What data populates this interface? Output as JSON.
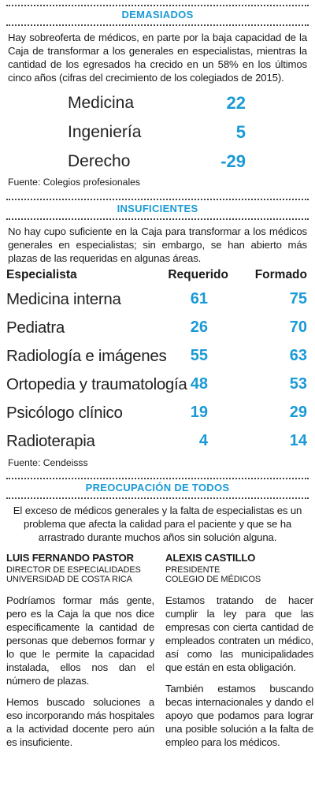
{
  "demasiados": {
    "title": "DEMASIADOS",
    "intro": "Hay sobreoferta de médicos, en parte por la baja capacidad de la Caja de transformar a los generales en especialistas, mientras la cantidad de los egresados ha crecido en un 58% en los últimos cinco años (cifras del crecimiento de los colegiados de 2015).",
    "rows": [
      {
        "label": "Medicina",
        "value": "22"
      },
      {
        "label": "Ingeniería",
        "value": "5"
      },
      {
        "label": "Derecho",
        "value": "-29"
      }
    ],
    "source": "Fuente: Colegios profesionales"
  },
  "insuficientes": {
    "title": "INSUFICIENTES",
    "intro": "No hay cupo suficiente en la Caja para transformar a los médicos generales en especialistas; sin embargo, se han abierto más plazas de las requeridas en algunas áreas.",
    "headers": {
      "specialist": "Especialista",
      "required": "Requerido",
      "trained": "Formado"
    },
    "rows": [
      {
        "name": "Medicina interna",
        "required": "61",
        "trained": "75"
      },
      {
        "name": "Pediatra",
        "required": "26",
        "trained": "70"
      },
      {
        "name": "Radiología e imágenes",
        "required": "55",
        "trained": "63"
      },
      {
        "name": "Ortopedia y traumatología",
        "required": "48",
        "trained": "53"
      },
      {
        "name": "Psicólogo clínico",
        "required": "19",
        "trained": "29"
      },
      {
        "name": "Radioterapia",
        "required": "4",
        "trained": "14"
      }
    ],
    "source": "Fuente: Cendeisss"
  },
  "preocupacion": {
    "title": "PREOCUPACIÓN DE TODOS",
    "intro": "El exceso de médicos generales y la falta de especialistas es un problema que afecta la calidad para el paciente y que se ha arrastrado durante muchos años sin solución alguna.",
    "left": {
      "name": "LUIS FERNANDO PASTOR",
      "role1": "DIRECTOR DE ESPECIALIDADES",
      "role2": "UNIVERSIDAD DE COSTA RICA",
      "p1": "Podríamos formar más gente, pero es la Caja la que nos dice específicamente la cantidad de personas que debemos formar y lo que le permite la capacidad instalada, ellos nos dan el número de plazas.",
      "p2": "Hemos buscado soluciones a eso incorporando más hospitales a la actividad docente pero aún es insuficiente."
    },
    "right": {
      "name": "ALEXIS CASTILLO",
      "role1": "PRESIDENTE",
      "role2": "COLEGIO DE MÉDICOS",
      "p1": "Estamos tratando de hacer cumplir la ley para que las empresas con cierta cantidad de empleados contraten un médico, así como las municipalidades que están en esta obligación.",
      "p2": "También estamos buscando becas internacionales y dando el apoyo que podamos para lograr una posible solución a la falta de empleo para los médicos."
    }
  },
  "colors": {
    "accent": "#1a9ad6",
    "text": "#1a1a1a"
  }
}
